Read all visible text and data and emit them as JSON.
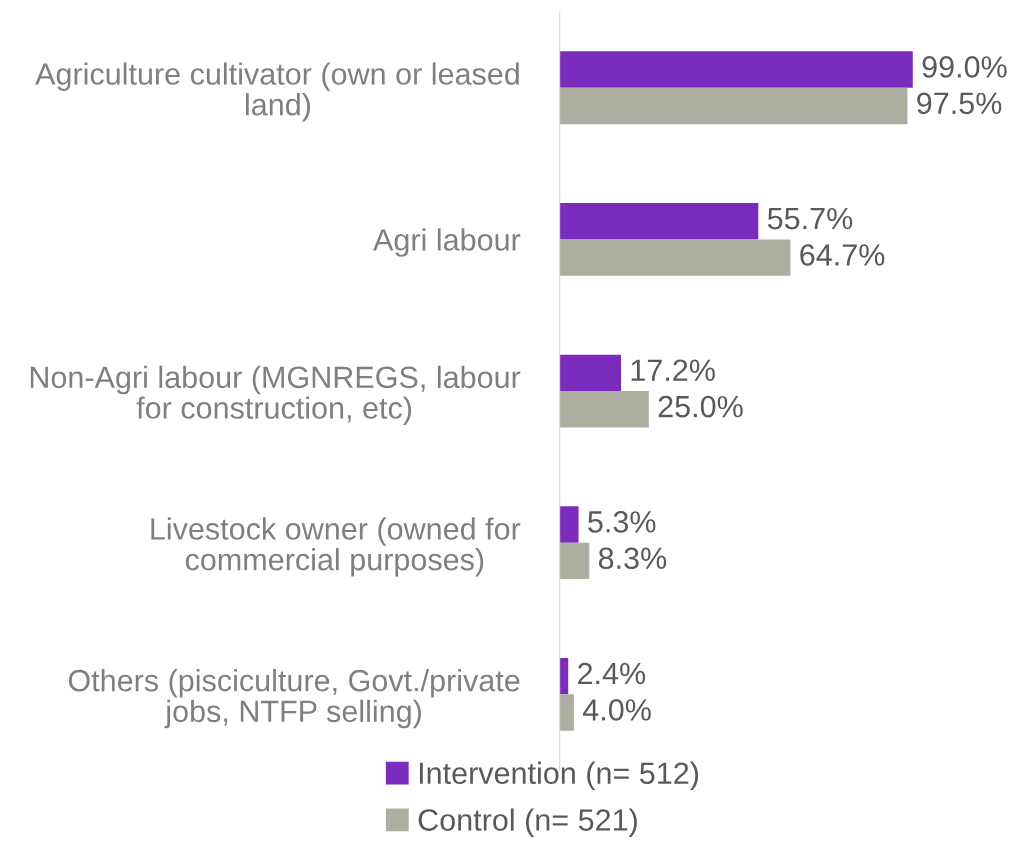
{
  "chart_data": {
    "type": "bar",
    "orientation": "horizontal",
    "categories": [
      "Agriculture cultivator (own or leased land)",
      "Agri labour",
      "Non-Agri labour (MGNREGS, labour for construction, etc)",
      "Livestock owner (owned for commercial purposes)",
      "Others (pisciculture, Govt./private jobs, NTFP selling)"
    ],
    "series": [
      {
        "name": "Intervention (n= 512)",
        "color": "#7b2bbd",
        "values": [
          99.0,
          55.7,
          17.2,
          5.3,
          2.4
        ],
        "value_labels": [
          "99.0%",
          "55.7%",
          "17.2%",
          "5.3%",
          "2.4%"
        ]
      },
      {
        "name": "Control (n= 521)",
        "color": "#adada0",
        "values": [
          97.5,
          64.7,
          25.0,
          8.3,
          4.0
        ],
        "value_labels": [
          "97.5%",
          "64.7%",
          "25.0%",
          "8.3%",
          "4.0%"
        ]
      }
    ],
    "xlim": [
      0,
      100
    ],
    "tick_labels": "y",
    "grid": false,
    "legend": "bottom"
  }
}
